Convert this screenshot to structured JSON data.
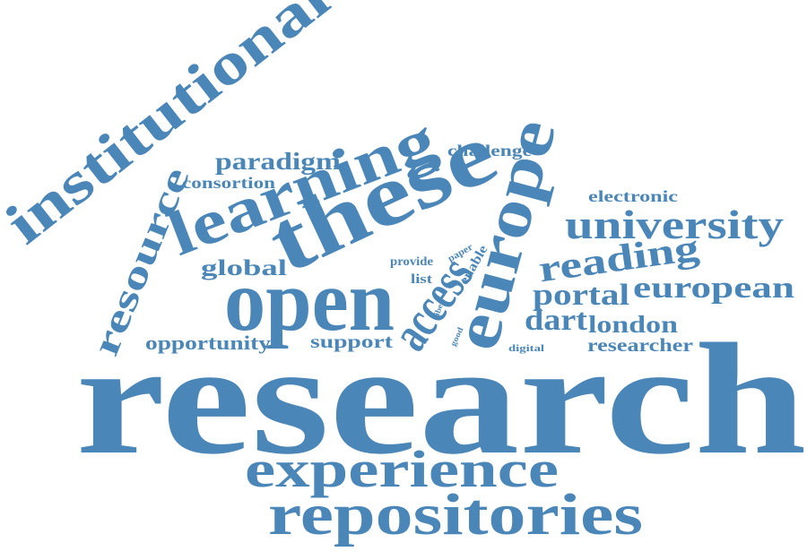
{
  "word_cloud": {
    "color": "#4a86b8",
    "words": {
      "research": "research",
      "repositories": "repositories",
      "experience": "experience",
      "institutional": "institutional",
      "these": "these",
      "learning": "learning",
      "open": "open",
      "europe": "europe",
      "access": "access",
      "resource": "resource",
      "university": "university",
      "reading": "reading",
      "european": "european",
      "portal": "portal",
      "dart": "dart",
      "london": "london",
      "researcher": "researcher",
      "paradigm": "paradigm",
      "consortion": "consortion",
      "global": "global",
      "opportunity": "opportunity",
      "support": "support",
      "challenge": "challenge",
      "electronic": "electronic",
      "provide": "provide",
      "list": "list",
      "enable": "enable",
      "paper": "paper",
      "liber": "liber",
      "good": "good",
      "digital": "digital"
    }
  }
}
